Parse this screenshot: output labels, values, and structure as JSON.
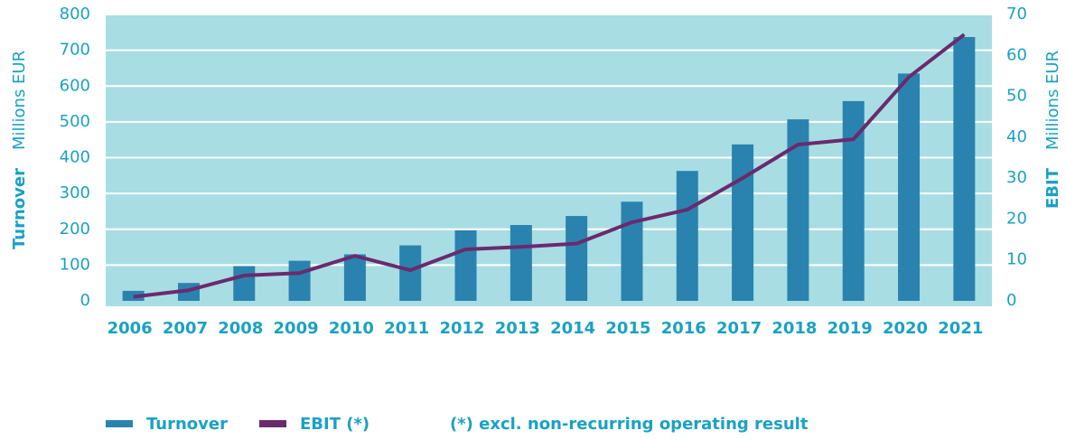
{
  "chart_data": {
    "type": "bar_line",
    "categories": [
      "2006",
      "2007",
      "2008",
      "2009",
      "2010",
      "2011",
      "2012",
      "2013",
      "2014",
      "2015",
      "2016",
      "2017",
      "2018",
      "2019",
      "2020",
      "2021"
    ],
    "series": [
      {
        "name": "Turnover",
        "color": "#2a83ae",
        "type": "bar",
        "values": [
          28,
          50,
          97,
          112,
          130,
          155,
          197,
          212,
          237,
          277,
          363,
          437,
          507,
          558,
          635,
          737
        ]
      },
      {
        "name": "EBIT (*)",
        "color": "#6b2a6e",
        "type": "line",
        "axis": "y2",
        "values": [
          1,
          2.6,
          6.2,
          6.8,
          11,
          7.5,
          12.6,
          13.2,
          14,
          19.2,
          22.3,
          30,
          38.2,
          39.5,
          54.7,
          65.1
        ]
      }
    ],
    "y_title": "Turnover",
    "y_unit": "Millions EUR",
    "y2_title": "EBIT",
    "y2_unit": "Millions EUR",
    "ylim": [
      0,
      800
    ],
    "yticks": [
      0,
      100,
      200,
      300,
      400,
      500,
      600,
      700,
      800
    ],
    "y2lim": [
      0,
      70
    ],
    "y2ticks": [
      0,
      10,
      20,
      30,
      40,
      50,
      60,
      70
    ],
    "grid": true,
    "background": "#a8dde4",
    "note": "(*) excl. non-recurring operating result"
  }
}
